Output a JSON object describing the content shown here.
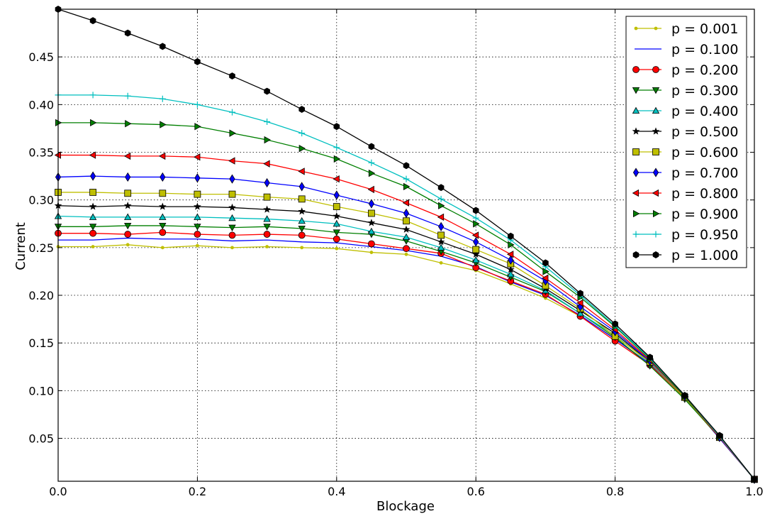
{
  "chart_data": {
    "type": "line",
    "title": "",
    "xlabel": "Blockage",
    "ylabel": "Current",
    "xlim": [
      0.0,
      1.0
    ],
    "ylim": [
      0.005,
      0.5
    ],
    "xticks": [
      "0.0",
      "0.2",
      "0.4",
      "0.6",
      "0.8",
      "1.0"
    ],
    "yticks": [
      "0.05",
      "0.10",
      "0.15",
      "0.20",
      "0.25",
      "0.30",
      "0.35",
      "0.40",
      "0.45"
    ],
    "grid": true,
    "legend_position": "top-right",
    "x": [
      0.0,
      0.05,
      0.1,
      0.15,
      0.2,
      0.25,
      0.3,
      0.35,
      0.4,
      0.45,
      0.5,
      0.55,
      0.6,
      0.65,
      0.7,
      0.75,
      0.8,
      0.85,
      0.9,
      0.95,
      1.0
    ],
    "series": [
      {
        "name": "p = 0.001",
        "color": "#bfbf00",
        "marker": "point",
        "values": [
          0.251,
          0.251,
          0.253,
          0.25,
          0.252,
          0.25,
          0.251,
          0.25,
          0.249,
          0.245,
          0.243,
          0.234,
          0.226,
          0.212,
          0.197,
          0.178,
          0.155,
          0.128,
          0.092,
          0.05,
          0.007
        ]
      },
      {
        "name": "p = 0.100",
        "color": "#0000ff",
        "marker": "none",
        "values": [
          0.258,
          0.258,
          0.26,
          0.259,
          0.259,
          0.257,
          0.258,
          0.256,
          0.255,
          0.251,
          0.247,
          0.241,
          0.23,
          0.214,
          0.2,
          0.179,
          0.154,
          0.128,
          0.093,
          0.05,
          0.007
        ]
      },
      {
        "name": "p = 0.200",
        "color": "#ff0000",
        "marker": "circle",
        "values": [
          0.265,
          0.265,
          0.264,
          0.266,
          0.264,
          0.263,
          0.264,
          0.263,
          0.259,
          0.254,
          0.249,
          0.244,
          0.229,
          0.215,
          0.201,
          0.178,
          0.152,
          0.127,
          0.093,
          0.051,
          0.007
        ]
      },
      {
        "name": "p = 0.300",
        "color": "#007f00",
        "marker": "triangle-down",
        "values": [
          0.272,
          0.272,
          0.273,
          0.273,
          0.272,
          0.271,
          0.272,
          0.27,
          0.266,
          0.264,
          0.257,
          0.246,
          0.234,
          0.219,
          0.204,
          0.181,
          0.156,
          0.126,
          0.091,
          0.051,
          0.007
        ]
      },
      {
        "name": "p = 0.400",
        "color": "#00bfbf",
        "marker": "triangle-up",
        "values": [
          0.283,
          0.282,
          0.282,
          0.282,
          0.282,
          0.281,
          0.28,
          0.278,
          0.275,
          0.267,
          0.261,
          0.25,
          0.237,
          0.222,
          0.205,
          0.181,
          0.158,
          0.129,
          0.093,
          0.051,
          0.007
        ]
      },
      {
        "name": "p = 0.500",
        "color": "#000000",
        "marker": "star",
        "values": [
          0.294,
          0.293,
          0.294,
          0.293,
          0.293,
          0.292,
          0.29,
          0.288,
          0.283,
          0.276,
          0.269,
          0.256,
          0.243,
          0.227,
          0.207,
          0.184,
          0.16,
          0.13,
          0.093,
          0.051,
          0.007
        ]
      },
      {
        "name": "p = 0.600",
        "color": "#bfbf00",
        "marker": "square",
        "values": [
          0.308,
          0.308,
          0.307,
          0.307,
          0.306,
          0.306,
          0.303,
          0.301,
          0.293,
          0.286,
          0.278,
          0.263,
          0.248,
          0.233,
          0.21,
          0.186,
          0.157,
          0.13,
          0.093,
          0.051,
          0.007
        ]
      },
      {
        "name": "p = 0.700",
        "color": "#0000ff",
        "marker": "diamond",
        "values": [
          0.324,
          0.325,
          0.324,
          0.324,
          0.323,
          0.322,
          0.318,
          0.314,
          0.305,
          0.296,
          0.286,
          0.272,
          0.256,
          0.237,
          0.215,
          0.188,
          0.162,
          0.131,
          0.094,
          0.051,
          0.007
        ]
      },
      {
        "name": "p = 0.800",
        "color": "#ff0000",
        "marker": "triangle-left",
        "values": [
          0.347,
          0.347,
          0.346,
          0.346,
          0.345,
          0.341,
          0.338,
          0.33,
          0.322,
          0.311,
          0.297,
          0.282,
          0.263,
          0.243,
          0.218,
          0.192,
          0.164,
          0.132,
          0.094,
          0.051,
          0.007
        ]
      },
      {
        "name": "p = 0.900",
        "color": "#007f00",
        "marker": "triangle-right",
        "values": [
          0.381,
          0.381,
          0.38,
          0.379,
          0.377,
          0.37,
          0.363,
          0.354,
          0.343,
          0.328,
          0.314,
          0.294,
          0.275,
          0.253,
          0.225,
          0.198,
          0.167,
          0.133,
          0.094,
          0.052,
          0.007
        ]
      },
      {
        "name": "p = 0.950",
        "color": "#00bfbf",
        "marker": "plus",
        "values": [
          0.41,
          0.41,
          0.409,
          0.406,
          0.4,
          0.392,
          0.382,
          0.37,
          0.355,
          0.339,
          0.322,
          0.301,
          0.281,
          0.258,
          0.23,
          0.2,
          0.168,
          0.134,
          0.095,
          0.052,
          0.007
        ]
      },
      {
        "name": "p = 1.000",
        "color": "#000000",
        "marker": "hexagon",
        "values": [
          0.5,
          0.488,
          0.475,
          0.461,
          0.445,
          0.43,
          0.414,
          0.395,
          0.377,
          0.356,
          0.336,
          0.313,
          0.289,
          0.262,
          0.234,
          0.202,
          0.17,
          0.135,
          0.095,
          0.053,
          0.007
        ]
      }
    ]
  }
}
